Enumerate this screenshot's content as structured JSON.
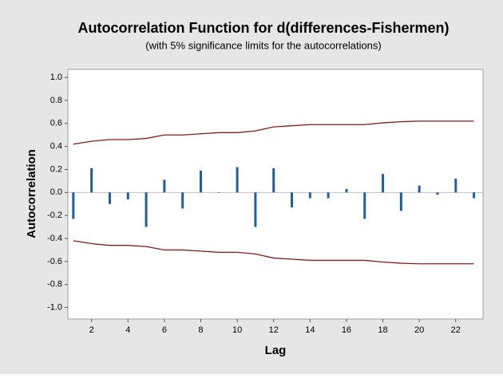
{
  "chart_data": {
    "type": "acf",
    "title": "Autocorrelation Function for d(differences-Fishermen)",
    "subtitle": "(with 5% significance limits for the autocorrelations)",
    "x_label": "Lag",
    "y_label": "Autocorrelation",
    "x": [
      1,
      2,
      3,
      4,
      5,
      6,
      7,
      8,
      9,
      10,
      11,
      12,
      13,
      14,
      15,
      16,
      17,
      18,
      19,
      20,
      21,
      22,
      23
    ],
    "values": [
      -0.23,
      0.21,
      -0.1,
      -0.06,
      -0.3,
      0.11,
      -0.14,
      0.19,
      0.0,
      0.22,
      -0.3,
      0.21,
      -0.13,
      -0.05,
      -0.05,
      0.03,
      -0.23,
      0.16,
      -0.16,
      0.06,
      -0.02,
      0.12,
      -0.05
    ],
    "color": "#1f5fa0",
    "upper_limit": [
      0.42,
      0.445,
      0.46,
      0.46,
      0.47,
      0.5,
      0.5,
      0.51,
      0.52,
      0.52,
      0.535,
      0.57,
      0.58,
      0.59,
      0.59,
      0.59,
      0.59,
      0.605,
      0.615,
      0.62,
      0.62,
      0.62,
      0.62
    ],
    "lower_limit": [
      -0.42,
      -0.445,
      -0.46,
      -0.46,
      -0.47,
      -0.5,
      -0.5,
      -0.51,
      -0.52,
      -0.52,
      -0.535,
      -0.57,
      -0.58,
      -0.59,
      -0.59,
      -0.59,
      -0.59,
      -0.605,
      -0.615,
      -0.62,
      -0.62,
      -0.62,
      -0.62
    ],
    "limit_color": "#8b1a1a",
    "xlim": [
      0.7,
      23.5
    ],
    "ylim": [
      -1.1,
      1.07
    ],
    "xticks": [
      2,
      4,
      6,
      8,
      10,
      12,
      14,
      16,
      18,
      20,
      22
    ],
    "yticks": [
      {
        "value": 1.0,
        "label": "1.0"
      },
      {
        "value": 0.8,
        "label": "0.8"
      },
      {
        "value": 0.6,
        "label": "0.6"
      },
      {
        "value": 0.4,
        "label": "0.4"
      },
      {
        "value": 0.2,
        "label": "0.2"
      },
      {
        "value": 0.0,
        "label": "0.0"
      },
      {
        "value": -0.2,
        "label": "-0.2"
      },
      {
        "value": -0.4,
        "label": "-0.4"
      },
      {
        "value": -0.6,
        "label": "-0.6"
      },
      {
        "value": -0.8,
        "label": "-0.8"
      },
      {
        "value": -1.0,
        "label": "-1.0"
      }
    ]
  }
}
